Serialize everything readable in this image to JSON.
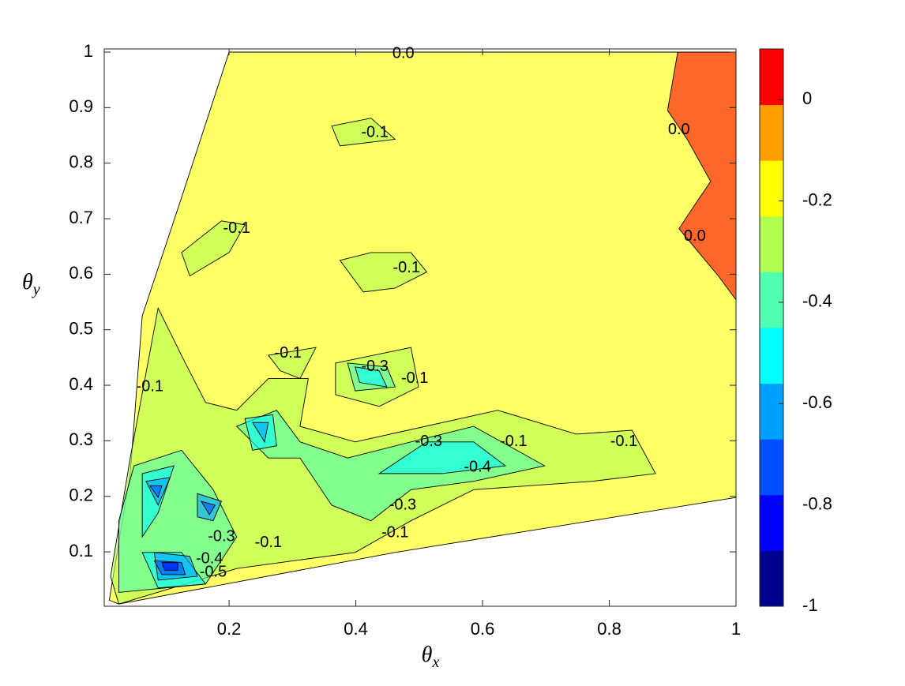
{
  "chart_data": {
    "type": "contour",
    "xlabel": {
      "symbol": "θ",
      "subscript": "x"
    },
    "ylabel": {
      "symbol": "θ",
      "subscript": "y"
    },
    "xlim": [
      0.003,
      1
    ],
    "ylim": [
      0.002,
      1
    ],
    "xticks": [
      0.2,
      0.4,
      0.6,
      0.8,
      1
    ],
    "yticks": [
      0.1,
      0.2,
      0.3,
      0.4,
      0.5,
      0.6,
      0.7,
      0.8,
      0.9,
      1
    ],
    "clim": [
      -1,
      0.1
    ],
    "cticks": [
      -1,
      -0.8,
      -0.6,
      -0.4,
      -0.2,
      0
    ],
    "colormap": [
      "#00008f",
      "#0000ff",
      "#0050ff",
      "#00a0ff",
      "#00ffff",
      "#50ffb0",
      "#b0ff50",
      "#ffff00",
      "#ffa000",
      "#ff0000"
    ],
    "regions": [
      {
        "value": -0.15,
        "points": [
          [
            0.2,
            1
          ],
          [
            1,
            1
          ],
          [
            1,
            0.198
          ],
          [
            0.462,
            0.099
          ],
          [
            0.026,
            0.006
          ],
          [
            0.011,
            0.013
          ],
          [
            0.044,
            0.241
          ],
          [
            0.063,
            0.525
          ],
          [
            0.125,
            0.738
          ]
        ]
      },
      {
        "value": 0.05,
        "points": [
          [
            0.908,
            1
          ],
          [
            1,
            1
          ],
          [
            1,
            0.554
          ],
          [
            0.972,
            0.597
          ],
          [
            0.91,
            0.682
          ],
          [
            0.935,
            0.725
          ],
          [
            0.96,
            0.767
          ],
          [
            0.923,
            0.843
          ],
          [
            0.892,
            0.895
          ]
        ]
      },
      {
        "value": -0.25,
        "points": [
          [
            0.044,
            0.269
          ],
          [
            0.088,
            0.539
          ],
          [
            0.131,
            0.44
          ],
          [
            0.163,
            0.369
          ],
          [
            0.212,
            0.355
          ],
          [
            0.262,
            0.412
          ],
          [
            0.325,
            0.412
          ],
          [
            0.312,
            0.326
          ],
          [
            0.399,
            0.298
          ],
          [
            0.624,
            0.355
          ],
          [
            0.748,
            0.312
          ],
          [
            0.836,
            0.319
          ],
          [
            0.873,
            0.241
          ],
          [
            0.773,
            0.227
          ],
          [
            0.586,
            0.212
          ],
          [
            0.487,
            0.156
          ],
          [
            0.399,
            0.099
          ],
          [
            0.212,
            0.07
          ],
          [
            0.026,
            0.006
          ],
          [
            0.013,
            0.056
          ]
        ]
      },
      {
        "value": -0.25,
        "points": [
          [
            0.362,
            0.867
          ],
          [
            0.424,
            0.881
          ],
          [
            0.462,
            0.843
          ],
          [
            0.375,
            0.831
          ]
        ]
      },
      {
        "value": -0.25,
        "points": [
          [
            0.125,
            0.639
          ],
          [
            0.188,
            0.696
          ],
          [
            0.225,
            0.689
          ],
          [
            0.2,
            0.639
          ],
          [
            0.138,
            0.597
          ]
        ]
      },
      {
        "value": -0.25,
        "points": [
          [
            0.375,
            0.625
          ],
          [
            0.424,
            0.639
          ],
          [
            0.487,
            0.639
          ],
          [
            0.512,
            0.604
          ],
          [
            0.462,
            0.575
          ],
          [
            0.412,
            0.568
          ]
        ]
      },
      {
        "value": -0.25,
        "points": [
          [
            0.368,
            0.44
          ],
          [
            0.487,
            0.468
          ],
          [
            0.499,
            0.397
          ],
          [
            0.437,
            0.362
          ],
          [
            0.368,
            0.383
          ]
        ]
      },
      {
        "value": -0.25,
        "points": [
          [
            0.262,
            0.454
          ],
          [
            0.337,
            0.468
          ],
          [
            0.312,
            0.412
          ],
          [
            0.281,
            0.426
          ]
        ]
      },
      {
        "value": -0.4,
        "points": [
          [
            0.05,
            0.255
          ],
          [
            0.125,
            0.283
          ],
          [
            0.175,
            0.212
          ],
          [
            0.212,
            0.127
          ],
          [
            0.163,
            0.042
          ],
          [
            0.026,
            0.027
          ],
          [
            0.026,
            0.156
          ]
        ]
      },
      {
        "value": -0.4,
        "points": [
          [
            0.212,
            0.326
          ],
          [
            0.275,
            0.355
          ],
          [
            0.312,
            0.298
          ],
          [
            0.387,
            0.269
          ],
          [
            0.487,
            0.298
          ],
          [
            0.586,
            0.326
          ],
          [
            0.698,
            0.255
          ],
          [
            0.586,
            0.227
          ],
          [
            0.487,
            0.212
          ],
          [
            0.424,
            0.156
          ],
          [
            0.362,
            0.184
          ],
          [
            0.312,
            0.269
          ],
          [
            0.262,
            0.269
          ]
        ]
      },
      {
        "value": -0.4,
        "points": [
          [
            0.387,
            0.44
          ],
          [
            0.449,
            0.433
          ],
          [
            0.462,
            0.397
          ],
          [
            0.399,
            0.39
          ]
        ]
      },
      {
        "value": -0.5,
        "points": [
          [
            0.225,
            0.34
          ],
          [
            0.269,
            0.347
          ],
          [
            0.275,
            0.291
          ],
          [
            0.237,
            0.283
          ]
        ]
      },
      {
        "value": -0.5,
        "points": [
          [
            0.437,
            0.241
          ],
          [
            0.512,
            0.298
          ],
          [
            0.586,
            0.298
          ],
          [
            0.636,
            0.255
          ],
          [
            0.536,
            0.241
          ]
        ]
      },
      {
        "value": -0.5,
        "points": [
          [
            0.399,
            0.433
          ],
          [
            0.437,
            0.426
          ],
          [
            0.449,
            0.397
          ],
          [
            0.406,
            0.405
          ]
        ]
      },
      {
        "value": -0.5,
        "points": [
          [
            0.063,
            0.241
          ],
          [
            0.113,
            0.255
          ],
          [
            0.088,
            0.17
          ],
          [
            0.063,
            0.127
          ]
        ]
      },
      {
        "value": -0.5,
        "points": [
          [
            0.063,
            0.099
          ],
          [
            0.125,
            0.099
          ],
          [
            0.163,
            0.042
          ],
          [
            0.088,
            0.035
          ]
        ]
      },
      {
        "value": -0.6,
        "points": [
          [
            0.069,
            0.227
          ],
          [
            0.107,
            0.234
          ],
          [
            0.088,
            0.184
          ]
        ]
      },
      {
        "value": -0.6,
        "points": [
          [
            0.15,
            0.205
          ],
          [
            0.188,
            0.191
          ],
          [
            0.175,
            0.156
          ],
          [
            0.15,
            0.163
          ]
        ]
      },
      {
        "value": -0.6,
        "points": [
          [
            0.082,
            0.099
          ],
          [
            0.138,
            0.092
          ],
          [
            0.15,
            0.056
          ],
          [
            0.088,
            0.049
          ]
        ]
      },
      {
        "value": -0.6,
        "points": [
          [
            0.237,
            0.333
          ],
          [
            0.262,
            0.333
          ],
          [
            0.256,
            0.298
          ]
        ]
      },
      {
        "value": -0.7,
        "points": [
          [
            0.082,
            0.084
          ],
          [
            0.125,
            0.081
          ],
          [
            0.131,
            0.059
          ],
          [
            0.094,
            0.059
          ]
        ]
      },
      {
        "value": -0.7,
        "points": [
          [
            0.156,
            0.191
          ],
          [
            0.178,
            0.184
          ],
          [
            0.169,
            0.167
          ]
        ]
      },
      {
        "value": -0.7,
        "points": [
          [
            0.075,
            0.219
          ],
          [
            0.094,
            0.219
          ],
          [
            0.088,
            0.198
          ]
        ]
      },
      {
        "value": -0.8,
        "points": [
          [
            0.094,
            0.081
          ],
          [
            0.119,
            0.081
          ],
          [
            0.119,
            0.067
          ],
          [
            0.098,
            0.067
          ]
        ]
      }
    ],
    "contour_labels": [
      {
        "label": "0.0",
        "value": 0,
        "x": 0.475,
        "y": 0.997
      },
      {
        "label": "-0.1",
        "value": -0.1,
        "x": 0.43,
        "y": 0.855
      },
      {
        "label": "0.0",
        "value": 0,
        "x": 0.91,
        "y": 0.86
      },
      {
        "label": "-0.1",
        "value": -0.1,
        "x": 0.212,
        "y": 0.682
      },
      {
        "label": "-0.1",
        "value": -0.1,
        "x": 0.48,
        "y": 0.611
      },
      {
        "label": "0.0",
        "value": 0,
        "x": 0.935,
        "y": 0.668
      },
      {
        "label": "-0.1",
        "value": -0.1,
        "x": 0.293,
        "y": 0.457
      },
      {
        "label": "-0.3",
        "value": -0.3,
        "x": 0.43,
        "y": 0.433
      },
      {
        "label": "-0.1",
        "value": -0.1,
        "x": 0.493,
        "y": 0.412
      },
      {
        "label": "-0.1",
        "value": -0.1,
        "x": 0.075,
        "y": 0.397
      },
      {
        "label": "-0.3",
        "value": -0.3,
        "x": 0.515,
        "y": 0.298
      },
      {
        "label": "-0.1",
        "value": -0.1,
        "x": 0.649,
        "y": 0.298
      },
      {
        "label": "-0.1",
        "value": -0.1,
        "x": 0.823,
        "y": 0.298
      },
      {
        "label": "-0.4",
        "value": -0.4,
        "x": 0.592,
        "y": 0.252
      },
      {
        "label": "-0.3",
        "value": -0.3,
        "x": 0.474,
        "y": 0.184
      },
      {
        "label": "-0.1",
        "value": -0.1,
        "x": 0.462,
        "y": 0.134
      },
      {
        "label": "-0.3",
        "value": -0.3,
        "x": 0.188,
        "y": 0.127
      },
      {
        "label": "-0.1",
        "value": -0.1,
        "x": 0.262,
        "y": 0.116
      },
      {
        "label": "-0.4",
        "value": -0.4,
        "x": 0.169,
        "y": 0.087
      },
      {
        "label": "-0.5",
        "value": -0.5,
        "x": 0.175,
        "y": 0.063
      }
    ]
  }
}
